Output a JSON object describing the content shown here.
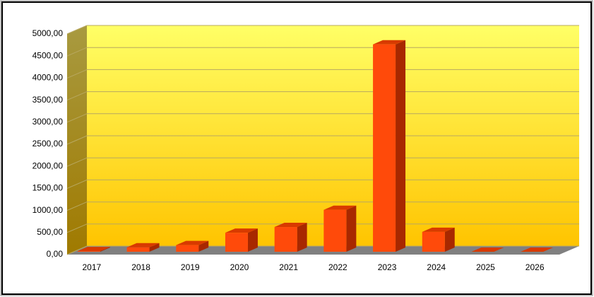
{
  "chart_data": {
    "type": "bar3d",
    "categories": [
      "2017",
      "2018",
      "2019",
      "2020",
      "2021",
      "2022",
      "2023",
      "2024",
      "2025",
      "2026"
    ],
    "values": [
      15,
      100,
      150,
      430,
      560,
      950,
      4700,
      450,
      0,
      0
    ],
    "color": "#ff4a0a",
    "ylim": [
      0,
      5000
    ],
    "yticks": [
      {
        "value": 0,
        "label": "0,00"
      },
      {
        "value": 500,
        "label": "500,00"
      },
      {
        "value": 1000,
        "label": "1000,00"
      },
      {
        "value": 1500,
        "label": "1500,00"
      },
      {
        "value": 2000,
        "label": "2000,00"
      },
      {
        "value": 2500,
        "label": "2500,00"
      },
      {
        "value": 3000,
        "label": "3000,00"
      },
      {
        "value": 3500,
        "label": "3500,00"
      },
      {
        "value": 4000,
        "label": "4000,00"
      },
      {
        "value": 4500,
        "label": "4500,00"
      },
      {
        "value": 5000,
        "label": "5000,00"
      }
    ],
    "grid": true
  }
}
